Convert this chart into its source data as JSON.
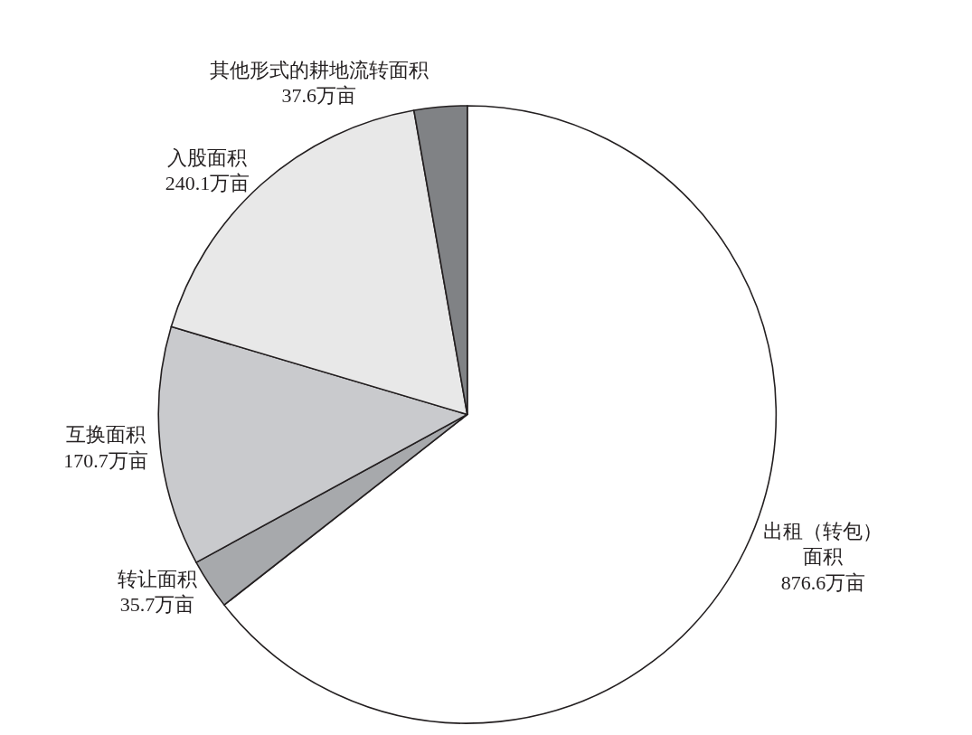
{
  "chart_data": {
    "type": "pie",
    "categories": [
      "出租（转包）面积",
      "转让面积",
      "互换面积",
      "入股面积",
      "其他形式的耕地流转面积"
    ],
    "values": [
      876.6,
      35.7,
      170.7,
      240.1,
      37.6
    ],
    "value_labels": [
      "876.6万亩",
      "35.7万亩",
      "170.7万亩",
      "240.1万亩",
      "37.6万亩"
    ],
    "colors": [
      "#ffffff",
      "#a7a9ac",
      "#c9cacd",
      "#e8e8e8",
      "#808285"
    ],
    "legend": false
  }
}
